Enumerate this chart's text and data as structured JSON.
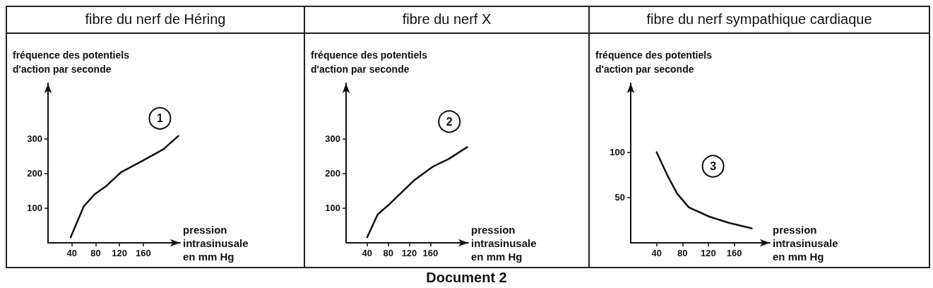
{
  "chart_data": [
    {
      "type": "line",
      "title": "fibre du nerf de Héring",
      "xlabel": "pression\nintrasinusale\nen mm Hg",
      "ylabel": "fréquence des potentiels\nd'action par seconde",
      "annotations": [
        "1"
      ],
      "series": [
        {
          "color": "#111111",
          "x": [
            38,
            60,
            79,
            98,
            123,
            156,
            194,
            219
          ],
          "values": [
            16,
            105,
            141,
            164,
            204,
            234,
            270,
            308
          ]
        }
      ],
      "xlim": [
        0,
        222
      ],
      "ylim": [
        0,
        460
      ],
      "xticks": [
        40,
        80,
        120,
        160
      ],
      "yticks": [
        100,
        200,
        300
      ],
      "grid": false,
      "marker": "none",
      "line_style": "solid"
    },
    {
      "type": "line",
      "title": "fibre du nerf X",
      "xlabel": "pression\nintrasinusale\nen mm Hg",
      "ylabel": "fréquence des potentiels\nd'action par seconde",
      "annotations": [
        "2",
        "Document 2"
      ],
      "series": [
        {
          "color": "#111111",
          "x": [
            40,
            60,
            82,
            129,
            164,
            195,
            230
          ],
          "values": [
            16,
            82,
            111,
            180,
            219,
            242,
            276
          ]
        }
      ],
      "xlim": [
        0,
        232
      ],
      "ylim": [
        0,
        460
      ],
      "xticks": [
        40,
        80,
        120,
        160
      ],
      "yticks": [
        100,
        200,
        300
      ],
      "grid": false,
      "marker": "none",
      "line_style": "solid"
    },
    {
      "type": "line",
      "title": "fibre du nerf sympathique cardiaque",
      "xlabel": "pression\nintrasinusale\nen mm Hg",
      "ylabel": "fréquence des potentiels\nd'action par seconde",
      "annotations": [
        "3"
      ],
      "series": [
        {
          "color": "#111111",
          "x": [
            40,
            57,
            72,
            90,
            121,
            152,
            187
          ],
          "values": [
            100,
            74,
            54,
            39,
            29,
            22,
            16
          ]
        }
      ],
      "xlim": [
        0,
        215
      ],
      "ylim": [
        0,
        176
      ],
      "xticks": [
        40,
        80,
        120,
        160
      ],
      "yticks": [
        50,
        100
      ],
      "grid": false,
      "marker": "none",
      "line_style": "solid"
    }
  ]
}
